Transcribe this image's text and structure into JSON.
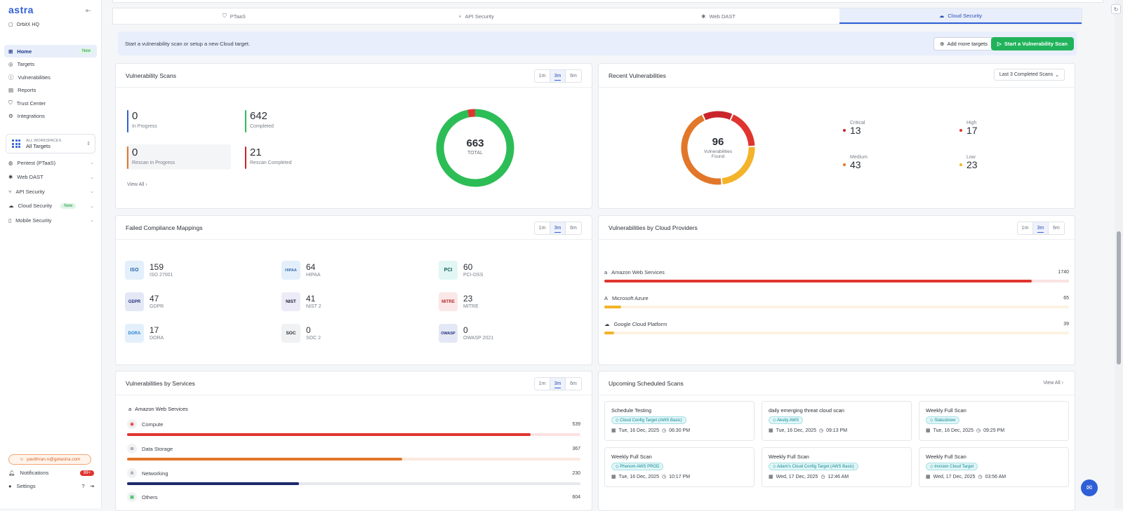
{
  "sidebar": {
    "logo": "astra",
    "org": "OrbitX HQ",
    "nav": [
      {
        "label": "Home",
        "badge": "New",
        "icon": "home-icon"
      },
      {
        "label": "Targets",
        "icon": "target-icon"
      },
      {
        "label": "Vulnerabilities",
        "icon": "alert-icon"
      },
      {
        "label": "Reports",
        "icon": "report-icon"
      },
      {
        "label": "Trust Center",
        "icon": "shield-icon"
      },
      {
        "label": "Integrations",
        "icon": "integrations-icon"
      }
    ],
    "workspace": {
      "small": "ALL WORKSPACES",
      "big": "All Targets"
    },
    "products": [
      {
        "label": "Pentest (PTaaS)",
        "icon": "pentest-icon"
      },
      {
        "label": "Web DAST",
        "icon": "bug-icon"
      },
      {
        "label": "API Security",
        "icon": "api-icon"
      },
      {
        "label": "Cloud Security",
        "badge": "New",
        "icon": "cloud-icon"
      },
      {
        "label": "Mobile Security",
        "icon": "mobile-icon"
      }
    ],
    "email": "pavithran.n@getastra.com",
    "notifications": "Notifications",
    "notif_count": "99+",
    "settings": "Settings"
  },
  "tabs": [
    "PTaaS",
    "API Security",
    "Web DAST",
    "Cloud Security"
  ],
  "banner": {
    "text": "Start a vulnerability scan or setup a new Cloud target.",
    "add": "Add more targets",
    "start": "Start a Vulnerability Scan"
  },
  "ranges": [
    "1m",
    "3m",
    "6m"
  ],
  "scans": {
    "title": "Vulnerability Scans",
    "in_progress": {
      "n": "0",
      "l": "In Progress"
    },
    "completed": {
      "n": "642",
      "l": "Completed"
    },
    "rescan_progress": {
      "n": "0",
      "l": "Rescan in Progress"
    },
    "rescan_completed": {
      "n": "21",
      "l": "Rescan Completed"
    },
    "view_all": "View All",
    "total": "663",
    "total_label": "TOTAL",
    "colors": {
      "completed": "#2dbd57",
      "rescan": "#e0342f"
    }
  },
  "recent": {
    "title": "Recent Vulnerabilities",
    "dropdown": "Last 3 Completed Scans",
    "count": "96",
    "count_label1": "Vulnerabilities",
    "count_label2": "Found",
    "severities": [
      {
        "label": "Critical",
        "n": "13",
        "color": "#c9252b"
      },
      {
        "label": "High",
        "n": "17",
        "color": "#e0342f"
      },
      {
        "label": "Medium",
        "n": "43",
        "color": "#e2772a"
      },
      {
        "label": "Low",
        "n": "23",
        "color": "#f3b32a"
      }
    ]
  },
  "compliance": {
    "title": "Failed Compliance Mappings",
    "items": [
      {
        "n": "159",
        "l": "ISO 27001",
        "abbr": "ISO",
        "bg": "#e3f0fb",
        "fg": "#1f5fa8"
      },
      {
        "n": "64",
        "l": "HIPAA",
        "abbr": "HIPAA",
        "bg": "#e3f0fb",
        "fg": "#3a6fb0"
      },
      {
        "n": "60",
        "l": "PCI-DSS",
        "abbr": "PCI",
        "bg": "#e2f6f4",
        "fg": "#0c5e5a"
      },
      {
        "n": "47",
        "l": "GDPR",
        "abbr": "GDPR",
        "bg": "#e4e8f6",
        "fg": "#24307a"
      },
      {
        "n": "41",
        "l": "NIST 2",
        "abbr": "NIST",
        "bg": "#ecebf7",
        "fg": "#1d1f3a"
      },
      {
        "n": "23",
        "l": "MITRE",
        "abbr": "MITRE",
        "bg": "#fbe7e7",
        "fg": "#b2302e"
      },
      {
        "n": "17",
        "l": "DORA",
        "abbr": "DORA",
        "bg": "#e3f0fb",
        "fg": "#2b7fd0"
      },
      {
        "n": "0",
        "l": "SOC 2",
        "abbr": "SOC",
        "bg": "#f0f1f3",
        "fg": "#2b2f36"
      },
      {
        "n": "0",
        "l": "OWASP 2021",
        "abbr": "OWASP",
        "bg": "#e4e8f6",
        "fg": "#24307a"
      }
    ]
  },
  "providers": {
    "title": "Vulnerabilities by Cloud Providers",
    "items": [
      {
        "label": "Amazon Web Services",
        "value": "1740",
        "fill": 0.92,
        "color": "#e0342f",
        "track": "#fbe3e2",
        "icon": "aws-icon"
      },
      {
        "label": "Microsoft Azure",
        "value": "65",
        "fill": 0.036,
        "color": "#f3b32a",
        "track": "#fdf3e2",
        "icon": "azure-icon"
      },
      {
        "label": "Google Cloud Platform",
        "value": "39",
        "fill": 0.021,
        "color": "#f3b32a",
        "track": "#fdf3e2",
        "icon": "gcp-icon"
      }
    ]
  },
  "services": {
    "title": "Vulnerabilities by Services",
    "provider": "Amazon Web Services",
    "items": [
      {
        "label": "Compute",
        "value": "539",
        "fill": 0.89,
        "color": "#e0342f",
        "track": "#fbe3e2",
        "icon": "compute-icon"
      },
      {
        "label": "Data Storage",
        "value": "367",
        "fill": 0.607,
        "color": "#e2772a",
        "track": "#fbe9df",
        "icon": "storage-icon"
      },
      {
        "label": "Networking",
        "value": "230",
        "fill": 0.38,
        "color": "#1b2a6b",
        "track": "#e6e8ee",
        "icon": "network-icon"
      },
      {
        "label": "Others",
        "value": "604",
        "fill": 0.99,
        "color": "#2dbd57",
        "track": "#e3f5e8",
        "icon": "others-icon"
      }
    ]
  },
  "upcoming": {
    "title": "Upcoming Scheduled Scans",
    "view_all": "View All",
    "items": [
      {
        "t": "Schedule Testing",
        "tag": "Cloud Config Target (AWS Basic)",
        "date": "Tue, 16 Dec, 2025",
        "time": "06:30 PM"
      },
      {
        "t": "daily emerging threat cloud scan",
        "tag": "Akuity AWS",
        "date": "Tue, 16 Dec, 2025",
        "time": "09:13 PM"
      },
      {
        "t": "Weekly Full Scan",
        "tag": "Statusbrew",
        "date": "Tue, 16 Dec, 2025",
        "time": "09:25 PM"
      },
      {
        "t": "Weekly Full Scan",
        "tag": "Phenom AWS PROD",
        "date": "Tue, 16 Dec, 2025",
        "time": "10:17 PM"
      },
      {
        "t": "Weekly Full Scan",
        "tag": "Adam's Cloud Config Target (AWS Basic)",
        "date": "Wed, 17 Dec, 2025",
        "time": "12:46 AM"
      },
      {
        "t": "Weekly Full Scan",
        "tag": "Invision Cloud Target",
        "date": "Wed, 17 Dec, 2025",
        "time": "03:56 AM"
      }
    ]
  }
}
